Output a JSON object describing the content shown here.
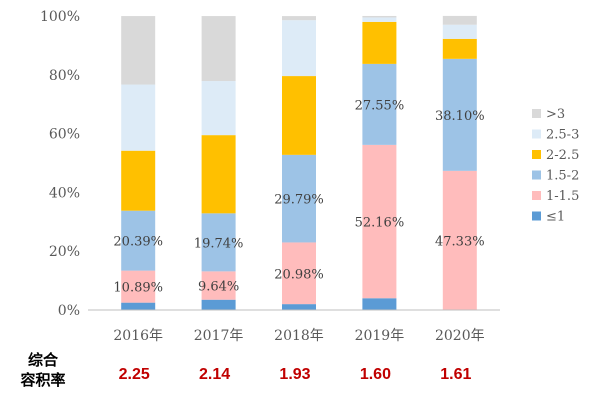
{
  "chart_data": {
    "type": "bar",
    "stacked": true,
    "categories": [
      "2016年",
      "2017年",
      "2018年",
      "2019年",
      "2020年"
    ],
    "ylim": [
      0,
      100
    ],
    "yticks": [
      "0%",
      "20%",
      "40%",
      "60%",
      "80%",
      "100%"
    ],
    "grid": false,
    "legend_position": "right",
    "series": [
      {
        "name": "≤1",
        "color": "#5b9bd5",
        "values": [
          2.5,
          3.5,
          2.0,
          4.0,
          0.0
        ]
      },
      {
        "name": "1-1.5",
        "color": "#ffbcbc",
        "values": [
          10.89,
          9.64,
          20.98,
          52.16,
          47.33
        ]
      },
      {
        "name": "1.5-2",
        "color": "#9dc3e6",
        "values": [
          20.39,
          19.74,
          29.79,
          27.55,
          38.1
        ]
      },
      {
        "name": "2-2.5",
        "color": "#ffc000",
        "values": [
          20.4,
          26.6,
          26.8,
          14.3,
          6.8
        ]
      },
      {
        "name": "2.5-3",
        "color": "#ddebf7",
        "values": [
          22.5,
          18.4,
          19.0,
          1.5,
          4.8
        ]
      },
      {
        "name": ">3",
        "color": "#d9d9d9",
        "values": [
          23.3,
          22.1,
          1.4,
          0.5,
          3.0
        ]
      }
    ],
    "data_labels": [
      {
        "series": 1,
        "category": 0,
        "text": "10.89%"
      },
      {
        "series": 1,
        "category": 1,
        "text": "9.64%"
      },
      {
        "series": 1,
        "category": 2,
        "text": "20.98%"
      },
      {
        "series": 1,
        "category": 3,
        "text": "52.16%"
      },
      {
        "series": 1,
        "category": 4,
        "text": "47.33%"
      },
      {
        "series": 2,
        "category": 0,
        "text": "20.39%"
      },
      {
        "series": 2,
        "category": 1,
        "text": "19.74%"
      },
      {
        "series": 2,
        "category": 2,
        "text": "29.79%"
      },
      {
        "series": 2,
        "category": 3,
        "text": "27.55%"
      },
      {
        "series": 2,
        "category": 4,
        "text": "38.10%"
      }
    ]
  },
  "footer": {
    "label_line1": "综合",
    "label_line2": "容积率",
    "values": [
      "2.25",
      "2.14",
      "1.93",
      "1.60",
      "1.61"
    ],
    "value_color": "#c00000"
  }
}
